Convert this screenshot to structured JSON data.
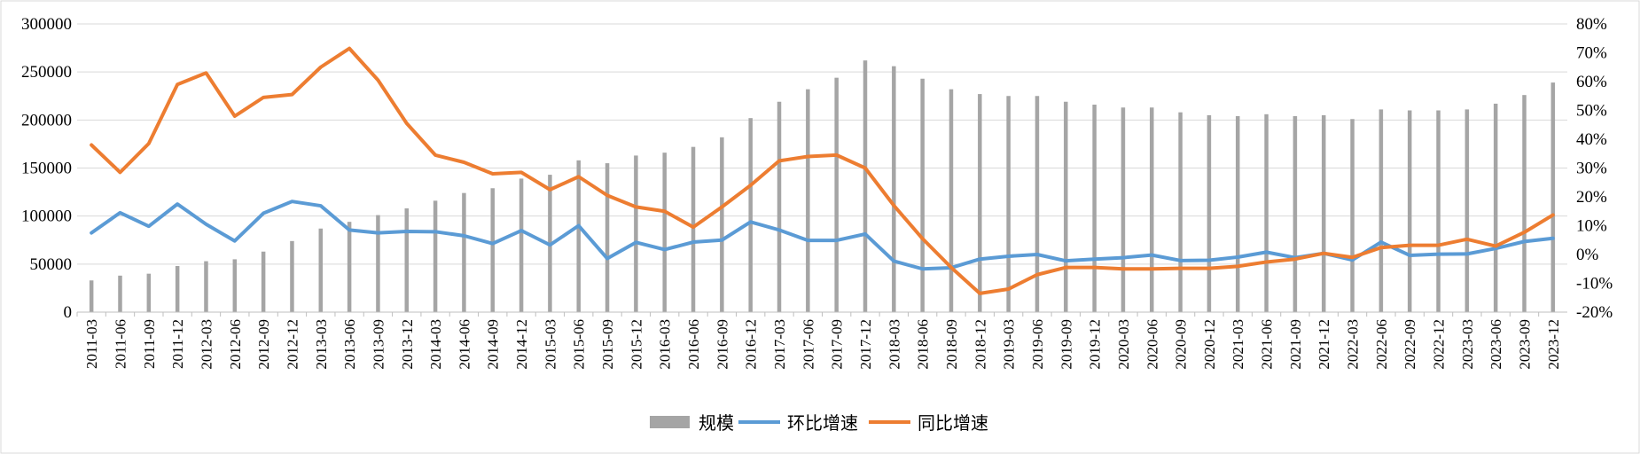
{
  "chart_data": {
    "type": "bar-line-combo",
    "title": "",
    "x": [
      "2011-03",
      "2011-06",
      "2011-09",
      "2011-12",
      "2012-03",
      "2012-06",
      "2012-09",
      "2012-12",
      "2013-03",
      "2013-06",
      "2013-09",
      "2013-12",
      "2014-03",
      "2014-06",
      "2014-09",
      "2014-12",
      "2015-03",
      "2015-06",
      "2015-09",
      "2015-12",
      "2016-03",
      "2016-06",
      "2016-09",
      "2016-12",
      "2017-03",
      "2017-06",
      "2017-09",
      "2017-12",
      "2018-03",
      "2018-06",
      "2018-09",
      "2018-12",
      "2019-03",
      "2019-06",
      "2019-09",
      "2019-12",
      "2020-03",
      "2020-06",
      "2020-09",
      "2020-12",
      "2021-03",
      "2021-06",
      "2021-09",
      "2021-12",
      "2022-03",
      "2022-06",
      "2022-09",
      "2022-12",
      "2023-03",
      "2023-06",
      "2023-09",
      "2023-12"
    ],
    "left_axis": {
      "ylim": [
        0,
        300000
      ],
      "ticks": [
        "0",
        "50000",
        "100000",
        "150000",
        "200000",
        "250000",
        "300000"
      ]
    },
    "right_axis": {
      "ylim": [
        -20,
        80
      ],
      "ticks": [
        "-20%",
        "-10%",
        "0%",
        "10%",
        "20%",
        "30%",
        "40%",
        "50%",
        "60%",
        "70%",
        "80%"
      ]
    },
    "series": [
      {
        "name": "规模",
        "kind": "bar",
        "axis": "left",
        "color": "#a5a5a5",
        "values": [
          33000,
          38000,
          40000,
          48000,
          53000,
          55000,
          63000,
          74000,
          87000,
          94000,
          101000,
          108000,
          116000,
          124000,
          129000,
          139000,
          143000,
          158000,
          155000,
          163000,
          166000,
          172000,
          182000,
          202000,
          219000,
          232000,
          244000,
          262000,
          256000,
          243000,
          232000,
          227000,
          225000,
          225000,
          219000,
          216000,
          213000,
          213000,
          208000,
          205000,
          204000,
          206000,
          204000,
          205000,
          201000,
          211000,
          210000,
          210000,
          211000,
          217000,
          226000,
          239000
        ]
      },
      {
        "name": "环比增速",
        "kind": "line",
        "axis": "right",
        "color": "#5b9bd5",
        "values": [
          7.5,
          14.5,
          9.8,
          17.5,
          10.5,
          4.7,
          14.3,
          18.4,
          16.9,
          8.5,
          7.5,
          8,
          7.9,
          6.5,
          3.8,
          8.3,
          3.3,
          10,
          -1.4,
          4.2,
          1.7,
          4.3,
          5,
          11.3,
          8.5,
          4.9,
          4.9,
          7.1,
          -2.3,
          -5,
          -4.6,
          -1.6,
          -0.6,
          0,
          -2.2,
          -1.6,
          -1.1,
          -0.2,
          -2.1,
          -2,
          -0.9,
          0.8,
          -1.1,
          0.4,
          -1.9,
          4.3,
          -0.3,
          0.1,
          0.2,
          2.1,
          4.5,
          5.6
        ]
      },
      {
        "name": "同比增速",
        "kind": "line",
        "axis": "right",
        "color": "#ed7d31",
        "values": [
          38,
          28.5,
          38.5,
          59,
          63,
          48,
          54.5,
          55.5,
          65,
          71.5,
          60.5,
          45.5,
          34.5,
          32,
          28,
          28.5,
          22.5,
          27,
          20.5,
          16.5,
          15,
          9.5,
          16.5,
          24,
          32.5,
          34,
          34.5,
          30,
          17,
          5.5,
          -4.5,
          -13.5,
          -12,
          -7,
          -4.5,
          -4.5,
          -5,
          -5,
          -4.8,
          -4.8,
          -4.1,
          -2.6,
          -1.6,
          0.4,
          -1,
          2.4,
          3.2,
          3.2,
          5.3,
          2.9,
          7.7,
          13.7
        ]
      }
    ],
    "legend": {
      "position": "bottom-center",
      "entries": [
        {
          "label": "规模"
        },
        {
          "label": "环比增速"
        },
        {
          "label": "同比增速"
        }
      ]
    },
    "grid": true
  }
}
